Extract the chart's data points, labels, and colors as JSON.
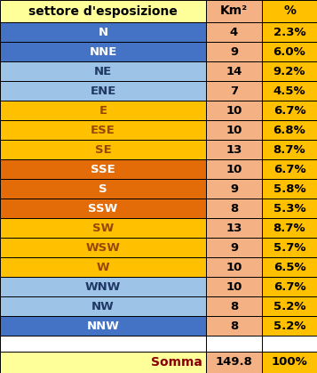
{
  "rows": [
    {
      "label": "N",
      "km2": "4",
      "pct": "2.3%",
      "bg": "#4472C4",
      "text_color": "#FFFFFF"
    },
    {
      "label": "NNE",
      "km2": "9",
      "pct": "6.0%",
      "bg": "#4472C4",
      "text_color": "#FFFFFF"
    },
    {
      "label": "NE",
      "km2": "14",
      "pct": "9.2%",
      "bg": "#9DC3E6",
      "text_color": "#1F3864"
    },
    {
      "label": "ENE",
      "km2": "7",
      "pct": "4.5%",
      "bg": "#9DC3E6",
      "text_color": "#1F3864"
    },
    {
      "label": "E",
      "km2": "10",
      "pct": "6.7%",
      "bg": "#FFC000",
      "text_color": "#974706"
    },
    {
      "label": "ESE",
      "km2": "10",
      "pct": "6.8%",
      "bg": "#FFC000",
      "text_color": "#974706"
    },
    {
      "label": "SE",
      "km2": "13",
      "pct": "8.7%",
      "bg": "#FFC000",
      "text_color": "#974706"
    },
    {
      "label": "SSE",
      "km2": "10",
      "pct": "6.7%",
      "bg": "#E36C09",
      "text_color": "#FFFFFF"
    },
    {
      "label": "S",
      "km2": "9",
      "pct": "5.8%",
      "bg": "#E36C09",
      "text_color": "#FFFFFF"
    },
    {
      "label": "SSW",
      "km2": "8",
      "pct": "5.3%",
      "bg": "#E36C09",
      "text_color": "#FFFFFF"
    },
    {
      "label": "SW",
      "km2": "13",
      "pct": "8.7%",
      "bg": "#FFC000",
      "text_color": "#974706"
    },
    {
      "label": "WSW",
      "km2": "9",
      "pct": "5.7%",
      "bg": "#FFC000",
      "text_color": "#974706"
    },
    {
      "label": "W",
      "km2": "10",
      "pct": "6.5%",
      "bg": "#FFC000",
      "text_color": "#974706"
    },
    {
      "label": "WNW",
      "km2": "10",
      "pct": "6.7%",
      "bg": "#9DC3E6",
      "text_color": "#1F3864"
    },
    {
      "label": "NW",
      "km2": "8",
      "pct": "5.2%",
      "bg": "#9DC3E6",
      "text_color": "#1F3864"
    },
    {
      "label": "NNW",
      "km2": "8",
      "pct": "5.2%",
      "bg": "#4472C4",
      "text_color": "#FFFFFF"
    }
  ],
  "header_label": "settore d'esposizione",
  "header_km2": "Km²",
  "header_pct": "%",
  "footer_label": "Somma",
  "footer_km2": "149.8",
  "footer_pct": "100%",
  "header_bg": "#FFFF99",
  "header_km2_bg": "#F4B183",
  "header_pct_bg": "#FFC000",
  "km2_col_bg": "#F4B183",
  "pct_col_bg": "#FFC000",
  "footer_bg": "#FFFF99",
  "footer_text": "#8B0000",
  "gap_bg": "#FFFFFF",
  "fig_w": 3.57,
  "fig_h": 4.19,
  "dpi": 100
}
